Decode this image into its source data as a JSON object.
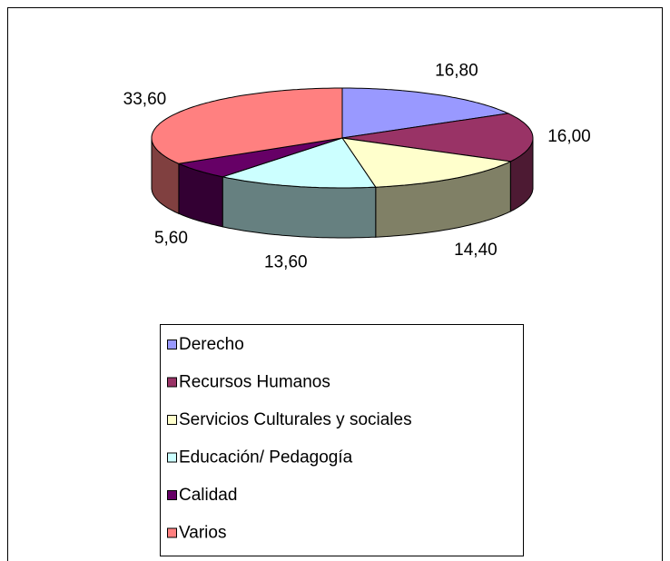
{
  "chart_data": {
    "type": "pie3d",
    "categories": [
      "Derecho",
      "Recursos Humanos",
      "Servicios Culturales y sociales",
      "Educación/ Pedagogía",
      "Calidad",
      "Varios"
    ],
    "values": [
      16.8,
      16.0,
      14.4,
      13.6,
      5.6,
      33.6
    ],
    "value_labels": [
      "16,80",
      "16,00",
      "14,40",
      "13,60",
      "5,60",
      "33,60"
    ],
    "colors": [
      "#9999ff",
      "#993366",
      "#ffffcc",
      "#ccffff",
      "#660066",
      "#ff8080"
    ],
    "legend": "bottom"
  }
}
